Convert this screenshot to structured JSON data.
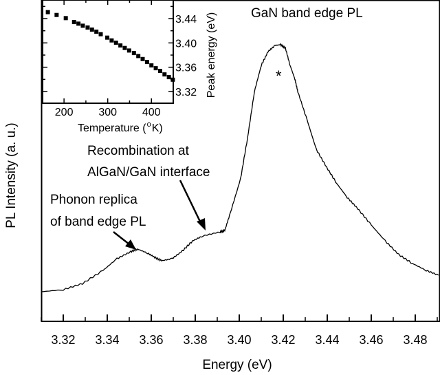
{
  "chart_data": [
    {
      "type": "line",
      "xlabel": "Energy (eV)",
      "ylabel": "PL Intensity (a. u.)",
      "xlim": [
        3.31,
        3.49
      ],
      "ylim": [
        0,
        467
      ],
      "x_ticks": [
        "3.32",
        "3.34",
        "3.36",
        "3.38",
        "3.40",
        "3.42",
        "3.44",
        "3.46",
        "3.48"
      ],
      "x_tick_values": [
        3.32,
        3.34,
        3.36,
        3.38,
        3.4,
        3.42,
        3.44,
        3.46,
        3.48
      ],
      "y_ticks_shown": false,
      "grid": false,
      "series": [
        {
          "color": "#000000",
          "x": [
            3.31,
            3.32,
            3.3288,
            3.3381,
            3.3444,
            3.3506,
            3.3538,
            3.3584,
            3.3616,
            3.3647,
            3.3694,
            3.3741,
            3.3788,
            3.3834,
            3.3913,
            3.3934,
            3.3959,
            3.4006,
            3.4038,
            3.4069,
            3.41,
            3.4131,
            3.4163,
            3.4188,
            3.421,
            3.4231,
            3.4253,
            3.4266,
            3.4309,
            3.435,
            3.4397,
            3.4444,
            3.4491,
            3.4538,
            3.46,
            3.4663,
            3.4725,
            3.4788,
            3.485,
            3.4906
          ],
          "y": [
            43,
            46,
            55,
            74,
            91,
            101,
            105,
            99,
            93,
            88,
            91,
            102,
            117,
            124,
            130,
            132,
            157,
            207,
            267,
            334,
            372,
            392,
            401,
            402,
            397,
            372,
            352,
            334,
            292,
            250,
            224,
            200,
            180,
            164,
            140,
            117,
            97,
            84,
            74,
            67
          ]
        }
      ],
      "annotations": [
        {
          "text": "GaN band edge PL"
        },
        {
          "text": "*"
        },
        {
          "text_lines": [
            "Recombination at",
            "AlGaN/GaN interface"
          ]
        },
        {
          "text_lines": [
            "Phonon replica",
            "of band edge PL"
          ]
        }
      ]
    },
    {
      "type": "scatter",
      "role": "inset",
      "xlabel": "Temperature (",
      "xlabel_sup": "o",
      "xlabel_end": "K)",
      "ylabel": "Peak energy (eV)",
      "xlim": [
        151,
        450
      ],
      "ylim": [
        3.3008,
        3.4706
      ],
      "x_ticks": [
        "200",
        "300",
        "400"
      ],
      "x_tick_values": [
        200,
        300,
        400
      ],
      "y_ticks": [
        "3.32",
        "3.36",
        "3.40",
        "3.44"
      ],
      "y_tick_values": [
        3.32,
        3.36,
        3.4,
        3.44
      ],
      "y_axis_side": "right",
      "marker": "square",
      "color": "#000000",
      "x": [
        163,
        183,
        204,
        223,
        233,
        243,
        254,
        264,
        274,
        284,
        299,
        309,
        319,
        329,
        339,
        349,
        360,
        370,
        380,
        390,
        400,
        410,
        420,
        430,
        440,
        449
      ],
      "y": [
        3.4506,
        3.446,
        3.4408,
        3.4343,
        3.4317,
        3.4283,
        3.4253,
        3.4219,
        3.4185,
        3.4143,
        3.4087,
        3.4041,
        3.4003,
        3.3958,
        3.3917,
        3.3875,
        3.3833,
        3.3784,
        3.3735,
        3.3686,
        3.363,
        3.3584,
        3.3539,
        3.3482,
        3.3437,
        3.3395
      ]
    }
  ]
}
